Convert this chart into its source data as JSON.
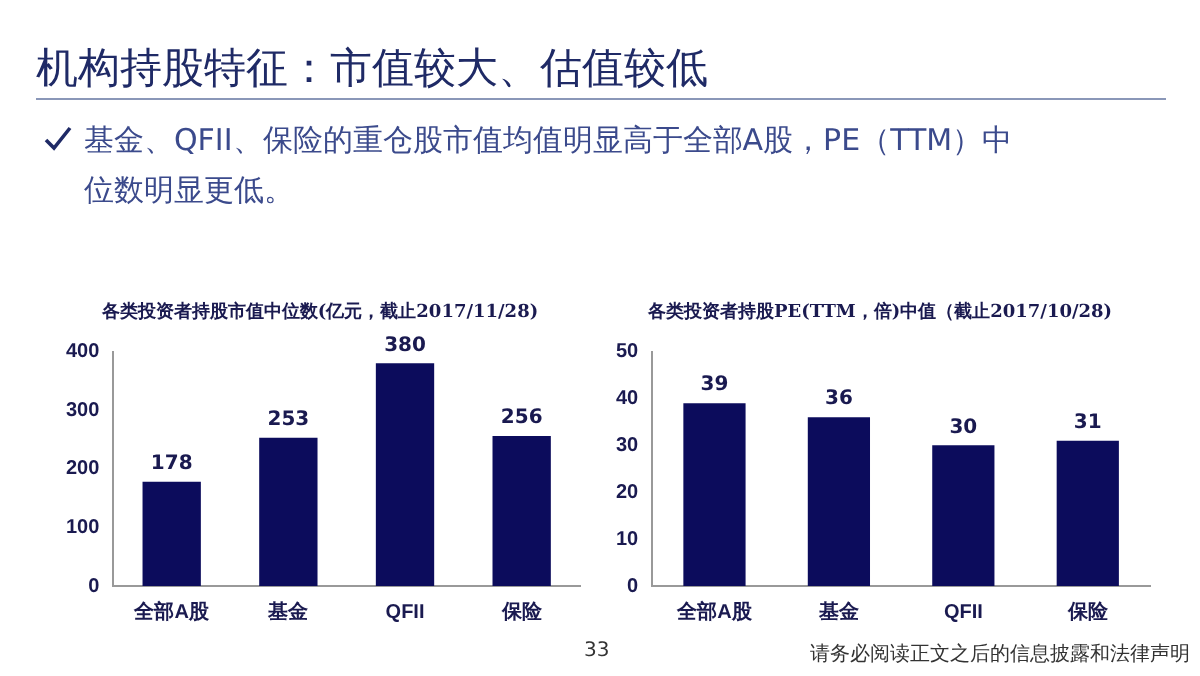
{
  "chart_data": [
    {
      "type": "bar",
      "title": "各类投资者持股市值中位数(亿元，截止2017/11/28)",
      "categories": [
        "全部A股",
        "基金",
        "QFII",
        "保险"
      ],
      "values": [
        178,
        253,
        380,
        256
      ],
      "color": "#0c0c5c",
      "ylim": [
        0,
        400
      ],
      "yticks": [
        0,
        100,
        200,
        300,
        400
      ],
      "grid": false,
      "data_labels": true,
      "annotations": [
        "机构持股特征：市值较大、估值较低",
        "基金、QFII、保险的重仓股市值均值明显高于全部A股，PE（TTM）中位数明显更低。",
        "33",
        "请务必阅读正文之后的信息披露和法律声明"
      ]
    },
    {
      "type": "bar",
      "title": "各类投资者持股PE(TTM，倍)中值（截止2017/10/28)",
      "categories": [
        "全部A股",
        "基金",
        "QFII",
        "保险"
      ],
      "values": [
        39,
        36,
        30,
        31
      ],
      "color": "#0c0c5c",
      "ylim": [
        0,
        50
      ],
      "yticks": [
        0,
        10,
        20,
        30,
        40,
        50
      ],
      "grid": false,
      "data_labels": true
    }
  ]
}
